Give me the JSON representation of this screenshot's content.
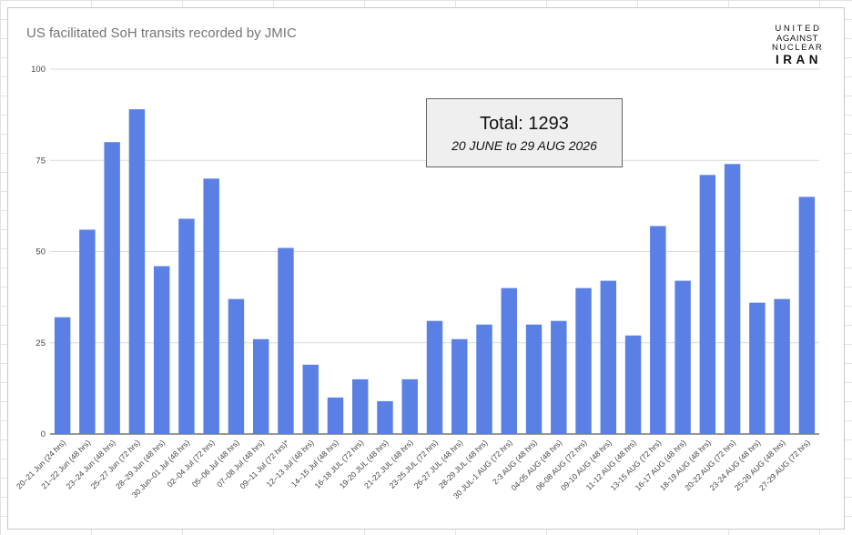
{
  "chart_data": {
    "type": "bar",
    "title": "US facilitated SoH transits recorded by JMIC",
    "xlabel": "",
    "ylabel": "",
    "ylim": [
      0,
      100
    ],
    "yticks": [
      0,
      25,
      50,
      75,
      100
    ],
    "grid": true,
    "bar_color": "#5b80e5",
    "categories": [
      "20–21 Jun (24 hrs)",
      "21–22 Jun (48 hrs)",
      "23–24 Jun (48 hrs)",
      "25–27 Jun (72 hrs)",
      "28–29 Jun (48 hrs)",
      "30 Jun–01 Jul (48 hrs)",
      "02–04 Jul (72 hrs)",
      "05–06 Jul (48 hrs)",
      "07–08 Jul (48 hrs)",
      "09–11 Jul (72 hrs)*",
      "12–13 Jul (48 hrs)",
      "14–15 Jul (48 hrs)",
      "16-18 JUL (72 hrs)",
      "19-20 JUL (48 hrs)",
      "21-22 JUL (48 hrs)",
      "23-25 JUL (72 hrs)",
      "26-27 JUL (48 hrs)",
      "28-29 JUL (48 hrs)",
      "30 JUL-1 AUG (72 hrs)",
      "2-3 AUG (48 hrs)",
      "04-05 AUG (48 hrs)",
      "06-08 AUG (72 hrs)",
      "09-10 AUG (48 hrs)",
      "11-12 AUG (48 hrs)",
      "13-15 AUG (72 hrs)",
      "16-17 AUG (48 hrs)",
      "18-19 AUG (48 hrs)",
      "20-22 AUG (72 hrs)",
      "23-24 AUG (48 hrs)",
      "25-26 AUG (48 hrs)",
      "27-29 AUG (72 hrs)"
    ],
    "values": [
      32,
      56,
      80,
      89,
      46,
      59,
      70,
      37,
      26,
      51,
      19,
      10,
      15,
      9,
      15,
      31,
      26,
      30,
      40,
      30,
      31,
      40,
      42,
      27,
      57,
      42,
      71,
      74,
      36,
      37,
      65
    ]
  },
  "annotation": {
    "total_label": "Total: 1293",
    "date_range": "20 JUNE to 29 AUG 2026"
  },
  "logo": {
    "line1": "UNITED",
    "line2": "AGAINST",
    "line3": "NUCLEAR",
    "line4": "IRAN"
  }
}
